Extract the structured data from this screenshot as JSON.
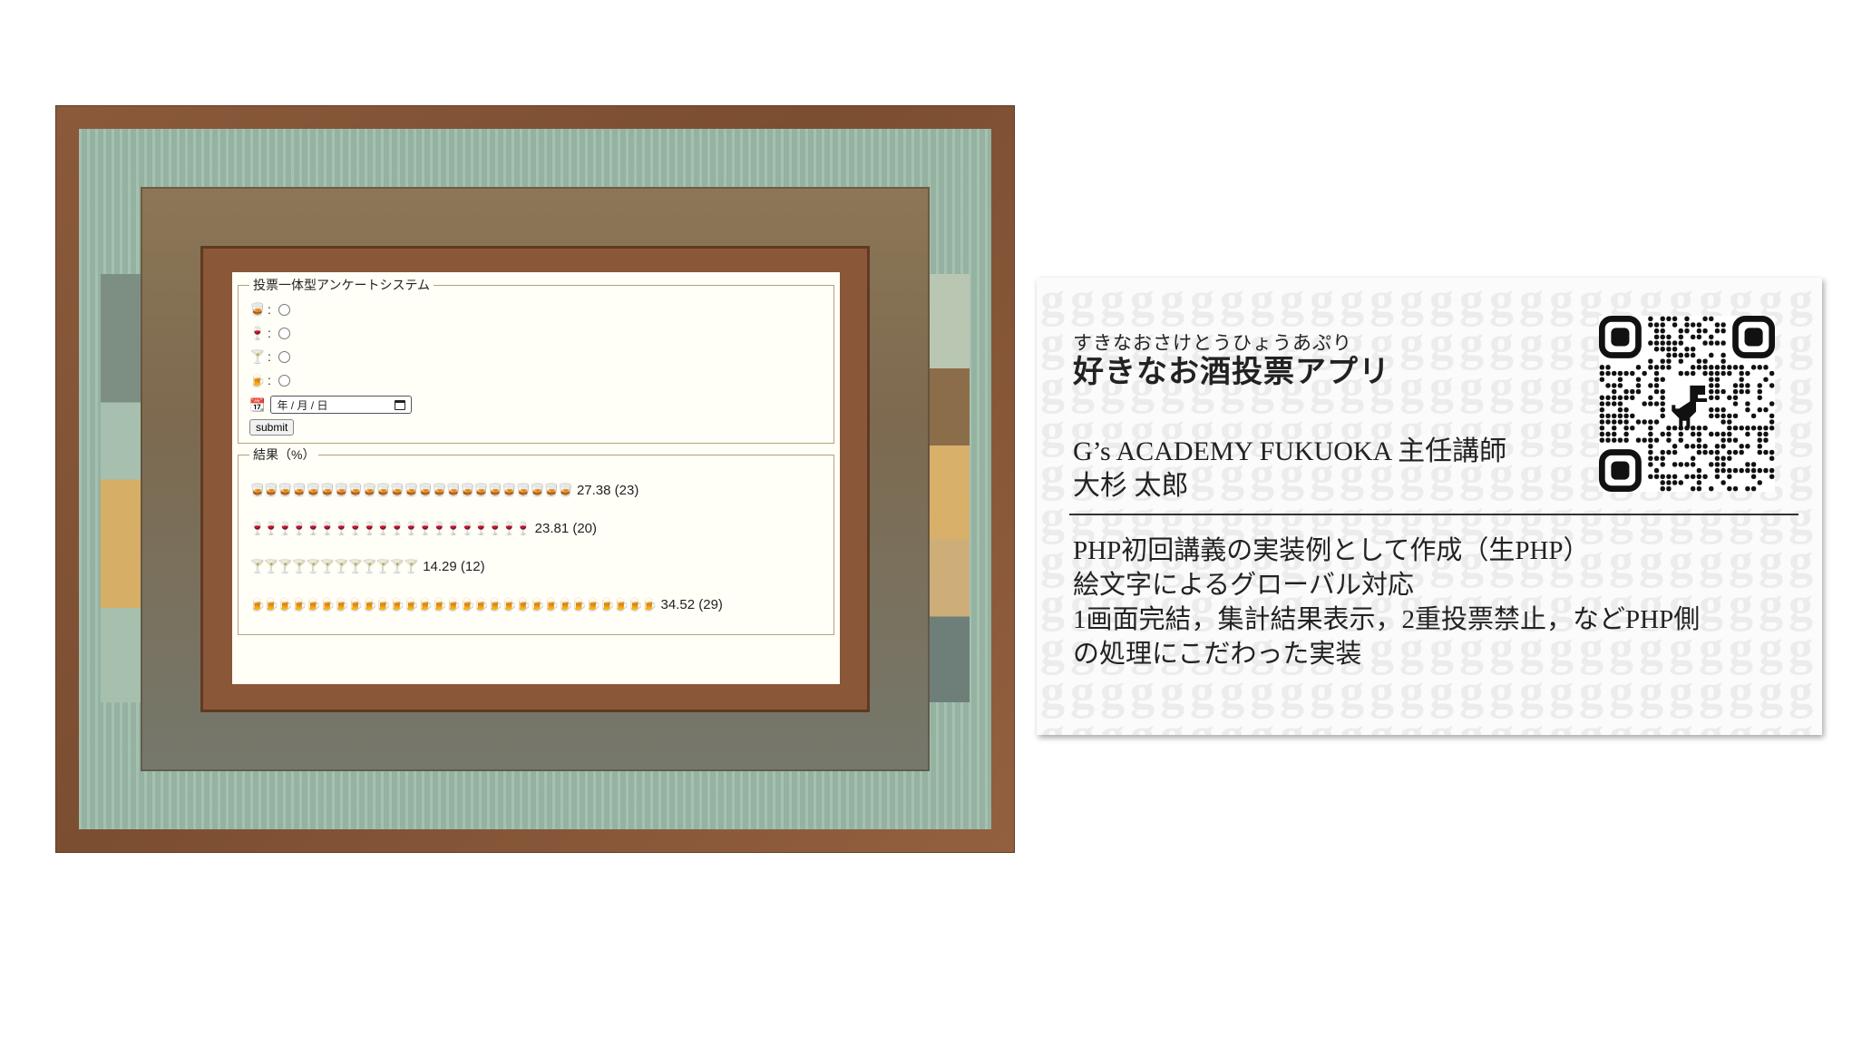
{
  "survey": {
    "legend": "投票一体型アンケートシステム",
    "options": [
      {
        "icon": "🥃",
        "sep": ":"
      },
      {
        "icon": "🍷",
        "sep": ":"
      },
      {
        "icon": "🍸",
        "sep": ":"
      },
      {
        "icon": "🍺",
        "sep": ":"
      }
    ],
    "date_icon": "📆",
    "date_placeholder": "年 / 月 / 日",
    "submit_label": "submit"
  },
  "results": {
    "legend": "結果（%）",
    "rows": [
      {
        "icon": "🥃",
        "count": 23,
        "percent": "27.38",
        "label": "27.38 (23)"
      },
      {
        "icon": "🍷",
        "count": 20,
        "percent": "23.81",
        "label": "23.81 (20)"
      },
      {
        "icon": "🍸",
        "count": 12,
        "percent": "14.29",
        "label": "14.29 (12)"
      },
      {
        "icon": "🍺",
        "count": 29,
        "percent": "34.52",
        "label": "34.52 (29)"
      }
    ]
  },
  "card": {
    "ruby": "すきなおさけとうひょうあぷり",
    "app_name": "好きなお酒投票アプリ",
    "org": "G’s ACADEMY FUKUOKA 主任講師",
    "person": "大杉 太郎",
    "description": [
      "PHP初回講義の実装例として作成（生PHP）",
      "絵文字によるグローバル対応",
      "1画面完結，集計結果表示，2重投票禁止，などPHP側",
      "の処理にこだわった実装"
    ],
    "watermark_char": "g"
  },
  "colors": {
    "frame_wood": "#8a5a3a",
    "mat_green": "#9dbcaa",
    "screen_bg": "#fffef7",
    "card_bg": "#fbfbfb"
  }
}
